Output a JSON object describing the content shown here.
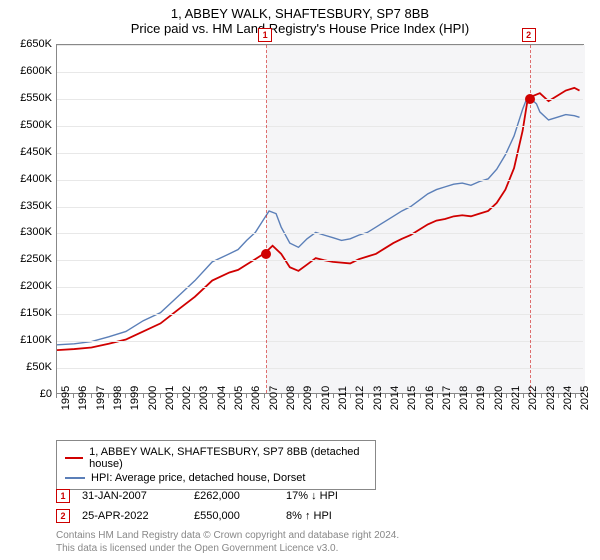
{
  "title": "1, ABBEY WALK, SHAFTESBURY, SP7 8BB",
  "subtitle": "Price paid vs. HM Land Registry's House Price Index (HPI)",
  "chart": {
    "type": "line",
    "background_color": "#ffffff",
    "shaded_background_color": "#f5f5f7",
    "grid_color": "#e8e8e8",
    "border_color": "#888888",
    "ylim": [
      0,
      650000
    ],
    "ytick_step": 50000,
    "ytick_labels": [
      "£0",
      "£50K",
      "£100K",
      "£150K",
      "£200K",
      "£250K",
      "£300K",
      "£350K",
      "£400K",
      "£450K",
      "£500K",
      "£550K",
      "£600K",
      "£650K"
    ],
    "xlim": [
      1995,
      2025.5
    ],
    "xtick_years": [
      1995,
      1996,
      1997,
      1998,
      1999,
      2000,
      2001,
      2002,
      2003,
      2004,
      2005,
      2006,
      2007,
      2008,
      2009,
      2010,
      2011,
      2012,
      2013,
      2014,
      2015,
      2016,
      2017,
      2018,
      2019,
      2020,
      2021,
      2022,
      2023,
      2024,
      2025
    ],
    "shaded_from_x": 2007.08,
    "label_fontsize": 11,
    "title_fontsize": 13,
    "series": [
      {
        "name": "price_paid",
        "color": "#d00000",
        "width": 1.8,
        "points": [
          [
            1995,
            80000
          ],
          [
            1996,
            82000
          ],
          [
            1997,
            85000
          ],
          [
            1998,
            92000
          ],
          [
            1999,
            100000
          ],
          [
            2000,
            115000
          ],
          [
            2001,
            130000
          ],
          [
            2002,
            155000
          ],
          [
            2003,
            180000
          ],
          [
            2004,
            210000
          ],
          [
            2005,
            225000
          ],
          [
            2005.5,
            230000
          ],
          [
            2006,
            240000
          ],
          [
            2006.5,
            250000
          ],
          [
            2007.08,
            262000
          ],
          [
            2007.5,
            275000
          ],
          [
            2008,
            260000
          ],
          [
            2008.5,
            235000
          ],
          [
            2009,
            228000
          ],
          [
            2009.5,
            240000
          ],
          [
            2010,
            252000
          ],
          [
            2010.5,
            248000
          ],
          [
            2011,
            245000
          ],
          [
            2012,
            242000
          ],
          [
            2012.5,
            250000
          ],
          [
            2013,
            255000
          ],
          [
            2013.5,
            260000
          ],
          [
            2014,
            270000
          ],
          [
            2014.5,
            280000
          ],
          [
            2015,
            288000
          ],
          [
            2015.5,
            295000
          ],
          [
            2016,
            305000
          ],
          [
            2016.5,
            315000
          ],
          [
            2017,
            322000
          ],
          [
            2017.5,
            325000
          ],
          [
            2018,
            330000
          ],
          [
            2018.5,
            332000
          ],
          [
            2019,
            330000
          ],
          [
            2019.5,
            335000
          ],
          [
            2020,
            340000
          ],
          [
            2020.5,
            355000
          ],
          [
            2021,
            380000
          ],
          [
            2021.5,
            420000
          ],
          [
            2022,
            490000
          ],
          [
            2022.3,
            550000
          ],
          [
            2022.6,
            555000
          ],
          [
            2023,
            560000
          ],
          [
            2023.5,
            545000
          ],
          [
            2024,
            555000
          ],
          [
            2024.5,
            565000
          ],
          [
            2025,
            570000
          ],
          [
            2025.3,
            565000
          ]
        ]
      },
      {
        "name": "hpi",
        "color": "#5b7fb8",
        "width": 1.4,
        "points": [
          [
            1995,
            90000
          ],
          [
            1996,
            92000
          ],
          [
            1997,
            96000
          ],
          [
            1998,
            105000
          ],
          [
            1999,
            115000
          ],
          [
            2000,
            135000
          ],
          [
            2001,
            150000
          ],
          [
            2002,
            180000
          ],
          [
            2003,
            210000
          ],
          [
            2004,
            245000
          ],
          [
            2005,
            260000
          ],
          [
            2005.5,
            268000
          ],
          [
            2006,
            285000
          ],
          [
            2006.5,
            300000
          ],
          [
            2007,
            325000
          ],
          [
            2007.3,
            340000
          ],
          [
            2007.7,
            335000
          ],
          [
            2008,
            310000
          ],
          [
            2008.5,
            280000
          ],
          [
            2009,
            272000
          ],
          [
            2009.5,
            288000
          ],
          [
            2010,
            300000
          ],
          [
            2010.5,
            295000
          ],
          [
            2011,
            290000
          ],
          [
            2011.5,
            285000
          ],
          [
            2012,
            288000
          ],
          [
            2012.5,
            295000
          ],
          [
            2013,
            300000
          ],
          [
            2013.5,
            310000
          ],
          [
            2014,
            320000
          ],
          [
            2014.5,
            330000
          ],
          [
            2015,
            340000
          ],
          [
            2015.5,
            348000
          ],
          [
            2016,
            360000
          ],
          [
            2016.5,
            372000
          ],
          [
            2017,
            380000
          ],
          [
            2017.5,
            385000
          ],
          [
            2018,
            390000
          ],
          [
            2018.5,
            392000
          ],
          [
            2019,
            388000
          ],
          [
            2019.5,
            395000
          ],
          [
            2020,
            400000
          ],
          [
            2020.5,
            418000
          ],
          [
            2021,
            445000
          ],
          [
            2021.5,
            480000
          ],
          [
            2022,
            530000
          ],
          [
            2022.3,
            555000
          ],
          [
            2022.8,
            540000
          ],
          [
            2023,
            525000
          ],
          [
            2023.5,
            510000
          ],
          [
            2024,
            515000
          ],
          [
            2024.5,
            520000
          ],
          [
            2025,
            518000
          ],
          [
            2025.3,
            515000
          ]
        ]
      }
    ],
    "markers": [
      {
        "id": "1",
        "x": 2007.08,
        "y": 262000
      },
      {
        "id": "2",
        "x": 2022.3,
        "y": 550000
      }
    ]
  },
  "legend": {
    "items": [
      {
        "color": "#d00000",
        "label": "1, ABBEY WALK, SHAFTESBURY, SP7 8BB (detached house)"
      },
      {
        "color": "#5b7fb8",
        "label": "HPI: Average price, detached house, Dorset"
      }
    ]
  },
  "transactions": [
    {
      "id": "1",
      "date": "31-JAN-2007",
      "price": "£262,000",
      "delta": "17% ↓ HPI"
    },
    {
      "id": "2",
      "date": "25-APR-2022",
      "price": "£550,000",
      "delta": "8% ↑ HPI"
    }
  ],
  "footer": {
    "line1": "Contains HM Land Registry data © Crown copyright and database right 2024.",
    "line2": "This data is licensed under the Open Government Licence v3.0."
  }
}
